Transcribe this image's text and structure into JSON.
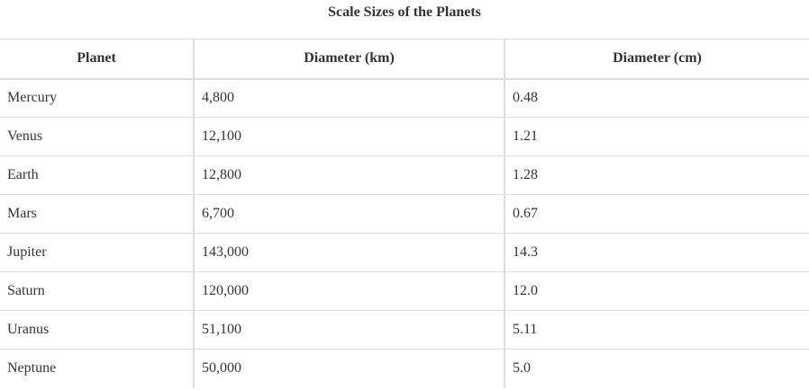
{
  "title": "Scale Sizes of the Planets",
  "table": {
    "header": [
      "Planet",
      "Diameter (km)",
      "Diameter (cm)"
    ],
    "rows": [
      [
        "Mercury",
        "4,800",
        "0.48"
      ],
      [
        "Venus",
        "12,100",
        "1.21"
      ],
      [
        "Earth",
        "12,800",
        "1.28"
      ],
      [
        "Mars",
        "6,700",
        "0.67"
      ],
      [
        "Jupiter",
        "143,000",
        "14.3"
      ],
      [
        "Saturn",
        "120,000",
        "12.0"
      ],
      [
        "Uranus",
        "51,100",
        "5.11"
      ],
      [
        "Neptune",
        "50,000",
        "5.0"
      ]
    ]
  }
}
